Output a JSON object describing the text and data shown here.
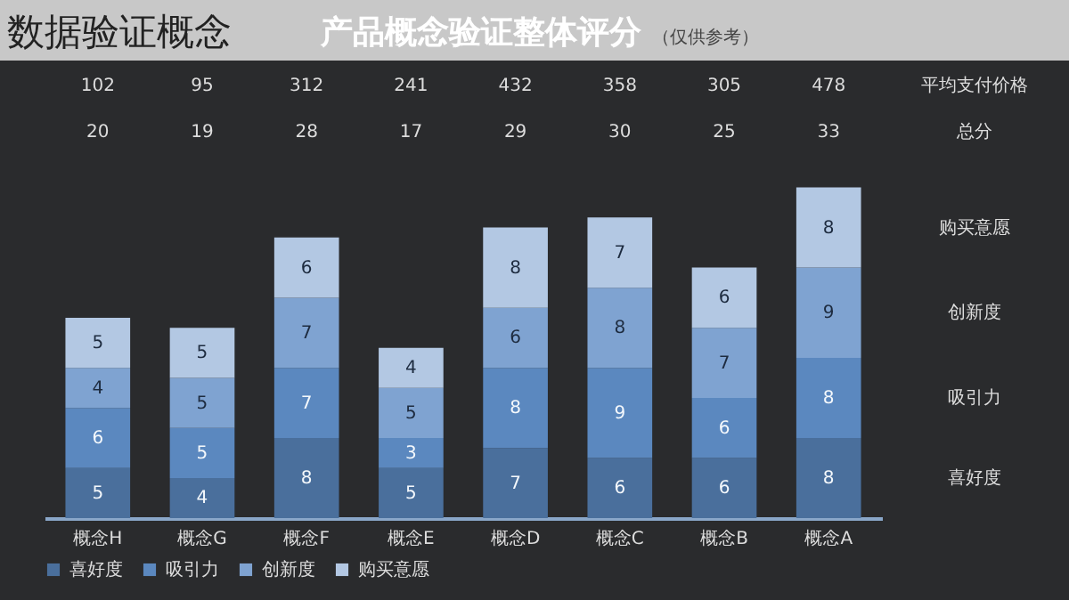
{
  "chart_data": {
    "type": "bar",
    "stacked": true,
    "title": "产品概念验证整体评分",
    "subtitle": "（仅供参考）",
    "categories": [
      "概念H",
      "概念G",
      "概念F",
      "概念E",
      "概念D",
      "概念C",
      "概念B",
      "概念A"
    ],
    "series": [
      {
        "name": "喜好度",
        "color": "#4a6f9c",
        "values": [
          5,
          4,
          8,
          5,
          7,
          6,
          6,
          8
        ]
      },
      {
        "name": "吸引力",
        "color": "#5b88bf",
        "values": [
          6,
          5,
          7,
          3,
          8,
          9,
          6,
          8
        ]
      },
      {
        "name": "创新度",
        "color": "#7fa3d1",
        "values": [
          4,
          5,
          7,
          5,
          6,
          8,
          7,
          9
        ]
      },
      {
        "name": "购买意愿",
        "color": "#b3c8e3",
        "values": [
          5,
          5,
          6,
          4,
          8,
          7,
          6,
          8
        ]
      }
    ],
    "data_labels": true,
    "annotations": [
      "数据验证概念",
      "平均支付价格",
      "102",
      "95",
      "312",
      "241",
      "432",
      "358",
      "305",
      "478",
      "总分",
      "20",
      "19",
      "28",
      "17",
      "29",
      "30",
      "25",
      "33"
    ],
    "legend": "bottom"
  }
}
